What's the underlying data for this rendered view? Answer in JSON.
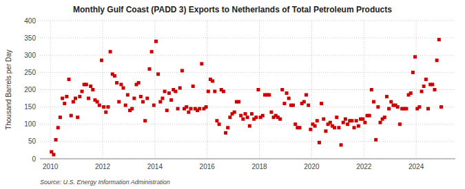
{
  "chart_data": {
    "type": "scatter",
    "title": "Monthly Gulf Coast (PADD 3) Exports to Netherlands of Total Petroleum Products",
    "y_label": "Thousand Barrels per Day",
    "source": "Source: U.S. Energy Information Administration",
    "color": "#cc0000",
    "marker": "square",
    "grid": true,
    "xlim": [
      2009.6,
      2025.5
    ],
    "xticks": [
      2010,
      2012,
      2014,
      2016,
      2018,
      2020,
      2022,
      2024
    ],
    "ylim": [
      0,
      400
    ],
    "yticks": [
      0,
      50,
      100,
      150,
      200,
      250,
      300,
      350,
      400
    ],
    "x": [
      2010.0416666666667,
      2010.125,
      2010.2083333333333,
      2010.2916666666667,
      2010.375,
      2010.4583333333333,
      2010.5416666666667,
      2010.625,
      2010.7083333333333,
      2010.7916666666667,
      2010.875,
      2010.9583333333333,
      2011.0416666666667,
      2011.125,
      2011.2083333333333,
      2011.2916666666667,
      2011.375,
      2011.4583333333333,
      2011.5416666666667,
      2011.625,
      2011.7083333333333,
      2011.7916666666667,
      2011.875,
      2011.9583333333333,
      2012.0416666666667,
      2012.125,
      2012.2083333333333,
      2012.2916666666667,
      2012.375,
      2012.4583333333333,
      2012.5416666666667,
      2012.625,
      2012.7083333333333,
      2012.7916666666667,
      2012.875,
      2012.9583333333333,
      2013.0416666666667,
      2013.125,
      2013.2083333333333,
      2013.2916666666667,
      2013.375,
      2013.4583333333333,
      2013.5416666666667,
      2013.625,
      2013.7083333333333,
      2013.7916666666667,
      2013.875,
      2013.9583333333333,
      2014.0416666666667,
      2014.125,
      2014.2083333333333,
      2014.2916666666667,
      2014.375,
      2014.4583333333333,
      2014.5416666666667,
      2014.625,
      2014.7083333333333,
      2014.7916666666667,
      2014.875,
      2014.9583333333333,
      2015.0416666666667,
      2015.125,
      2015.2083333333333,
      2015.2916666666667,
      2015.375,
      2015.4583333333333,
      2015.5416666666667,
      2015.625,
      2015.7083333333333,
      2015.7916666666667,
      2015.875,
      2015.9583333333333,
      2016.0416666666667,
      2016.125,
      2016.2083333333333,
      2016.2916666666667,
      2016.375,
      2016.4583333333333,
      2016.5416666666667,
      2016.625,
      2016.7083333333333,
      2016.7916666666667,
      2016.875,
      2016.9583333333333,
      2017.0416666666667,
      2017.125,
      2017.2083333333333,
      2017.2916666666667,
      2017.375,
      2017.4583333333333,
      2017.5416666666667,
      2017.625,
      2017.7083333333333,
      2017.7916666666667,
      2017.875,
      2017.9583333333333,
      2018.0416666666667,
      2018.125,
      2018.2083333333333,
      2018.2916666666667,
      2018.375,
      2018.4583333333333,
      2018.5416666666667,
      2018.625,
      2018.7083333333333,
      2018.7916666666667,
      2018.875,
      2018.9583333333333,
      2019.0416666666667,
      2019.125,
      2019.2083333333333,
      2019.2916666666667,
      2019.375,
      2019.4583333333333,
      2019.5416666666667,
      2019.625,
      2019.7083333333333,
      2019.7916666666667,
      2019.875,
      2019.9583333333333,
      2020.0416666666667,
      2020.125,
      2020.2083333333333,
      2020.2916666666667,
      2020.375,
      2020.4583333333333,
      2020.5416666666667,
      2020.625,
      2020.7083333333333,
      2020.7916666666667,
      2020.875,
      2020.9583333333333,
      2021.0416666666667,
      2021.125,
      2021.2083333333333,
      2021.2916666666667,
      2021.375,
      2021.4583333333333,
      2021.5416666666667,
      2021.625,
      2021.7083333333333,
      2021.7916666666667,
      2021.875,
      2021.9583333333333,
      2022.0416666666667,
      2022.125,
      2022.2083333333333,
      2022.2916666666667,
      2022.375,
      2022.4583333333333,
      2022.5416666666667,
      2022.625,
      2022.7083333333333,
      2022.7916666666667,
      2022.875,
      2022.9583333333333,
      2023.0416666666667,
      2023.125,
      2023.2083333333333,
      2023.2916666666667,
      2023.375,
      2023.4583333333333,
      2023.5416666666667,
      2023.625,
      2023.7083333333333,
      2023.7916666666667,
      2023.875,
      2023.9583333333333,
      2024.0416666666667,
      2024.125,
      2024.2083333333333,
      2024.2916666666667,
      2024.375,
      2024.4583333333333,
      2024.5416666666667,
      2024.625,
      2024.7083333333333,
      2024.7916666666667,
      2024.875,
      2024.9583333333333
    ],
    "values": [
      20,
      12,
      55,
      90,
      120,
      175,
      160,
      180,
      230,
      125,
      165,
      175,
      120,
      180,
      195,
      215,
      215,
      175,
      210,
      200,
      170,
      165,
      155,
      285,
      150,
      135,
      150,
      310,
      245,
      240,
      220,
      165,
      215,
      205,
      155,
      185,
      140,
      145,
      175,
      215,
      220,
      180,
      165,
      110,
      175,
      260,
      310,
      155,
      340,
      245,
      165,
      175,
      195,
      140,
      190,
      170,
      200,
      195,
      145,
      205,
      255,
      145,
      150,
      135,
      145,
      210,
      145,
      140,
      145,
      275,
      145,
      150,
      195,
      230,
      225,
      195,
      110,
      100,
      200,
      195,
      75,
      90,
      120,
      130,
      135,
      165,
      165,
      125,
      115,
      130,
      120,
      95,
      130,
      115,
      120,
      200,
      120,
      125,
      185,
      185,
      185,
      135,
      120,
      125,
      120,
      115,
      200,
      160,
      190,
      175,
      155,
      155,
      100,
      90,
      90,
      160,
      165,
      185,
      155,
      85,
      100,
      95,
      110,
      47,
      160,
      115,
      80,
      100,
      105,
      95,
      90,
      120,
      90,
      40,
      105,
      115,
      100,
      110,
      110,
      90,
      110,
      95,
      115,
      115,
      105,
      125,
      125,
      200,
      165,
      55,
      150,
      105,
      115,
      120,
      180,
      145,
      165,
      155,
      155,
      150,
      100,
      145,
      145,
      145,
      185,
      190,
      250,
      295,
      145,
      150,
      195,
      210,
      230,
      145,
      215,
      215,
      200,
      285,
      345,
      150
    ]
  }
}
